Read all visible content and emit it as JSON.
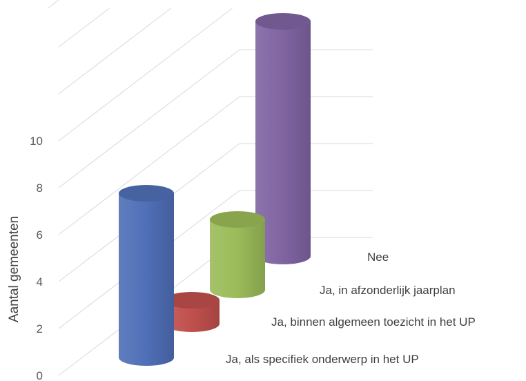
{
  "chart_data": {
    "type": "bar",
    "style": "3d-cylinder",
    "ylabel": "Aantal gemeenten",
    "ylim": [
      0,
      10
    ],
    "yticks": [
      0,
      2,
      4,
      6,
      8,
      10
    ],
    "categories": [
      "Ja, als specifiek onderwerp in het UP",
      "Ja, binnen algemeen toezicht in het UP",
      "Ja, in afzonderlijk jaarplan",
      "Nee"
    ],
    "values": [
      7,
      1,
      3,
      10
    ],
    "colors": [
      "#4f6fb7",
      "#c0504d",
      "#9bbb59",
      "#8064a2"
    ],
    "grid": true
  }
}
